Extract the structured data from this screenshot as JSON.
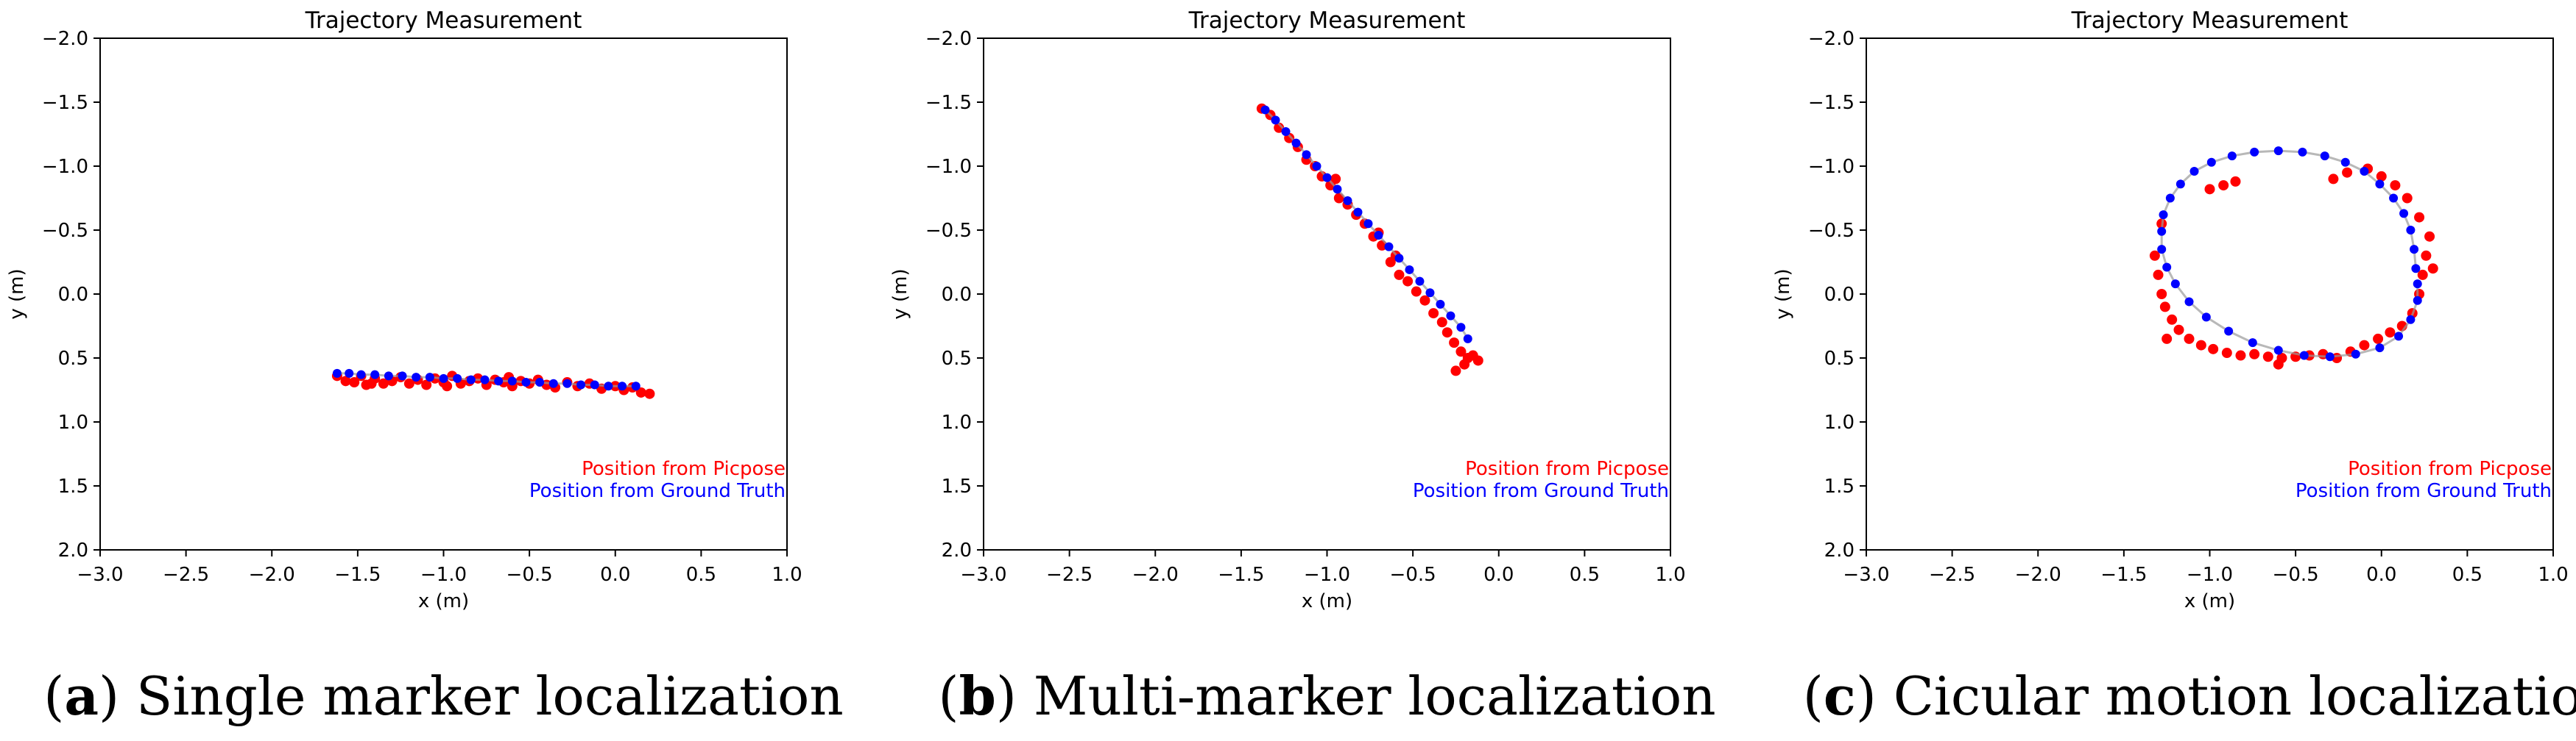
{
  "chart_data": [
    {
      "type": "scatter",
      "panel_label": "a",
      "caption": "Single marker localization",
      "title": "Trajectory Measurement",
      "xlabel": "x (m)",
      "ylabel": "y (m)",
      "xlim": [
        -3.0,
        1.0
      ],
      "ylim": [
        -2.0,
        2.0
      ],
      "y_inverted": true,
      "xticks": [
        "−3.0",
        "−2.5",
        "−2.0",
        "−1.5",
        "−1.0",
        "−0.5",
        "0.0",
        "0.5",
        "1.0"
      ],
      "yticks": [
        "−2.0",
        "−1.5",
        "−1.0",
        "−0.5",
        "0.0",
        "0.5",
        "1.0",
        "1.5",
        "2.0"
      ],
      "grid": false,
      "legend_position": "lower-right",
      "series": [
        {
          "name": "Position from Picpose",
          "color": "#ff0000",
          "points": [
            [
              -1.57,
              0.68
            ],
            [
              -1.52,
              0.69
            ],
            [
              -1.48,
              0.64
            ],
            [
              -1.45,
              0.71
            ],
            [
              -1.4,
              0.66
            ],
            [
              -1.35,
              0.7
            ],
            [
              -1.3,
              0.68
            ],
            [
              -1.25,
              0.65
            ],
            [
              -1.2,
              0.7
            ],
            [
              -1.15,
              0.67
            ],
            [
              -1.1,
              0.71
            ],
            [
              -1.05,
              0.66
            ],
            [
              -1.0,
              0.69
            ],
            [
              -0.95,
              0.64
            ],
            [
              -0.9,
              0.7
            ],
            [
              -0.85,
              0.68
            ],
            [
              -0.8,
              0.66
            ],
            [
              -0.75,
              0.71
            ],
            [
              -0.7,
              0.67
            ],
            [
              -0.65,
              0.69
            ],
            [
              -0.6,
              0.72
            ],
            [
              -0.55,
              0.68
            ],
            [
              -0.5,
              0.7
            ],
            [
              -0.45,
              0.67
            ],
            [
              -0.4,
              0.71
            ],
            [
              -0.35,
              0.73
            ],
            [
              -0.28,
              0.69
            ],
            [
              -0.22,
              0.72
            ],
            [
              -0.15,
              0.7
            ],
            [
              -0.08,
              0.74
            ],
            [
              0.0,
              0.72
            ],
            [
              0.05,
              0.75
            ],
            [
              0.1,
              0.73
            ],
            [
              0.15,
              0.77
            ],
            [
              0.2,
              0.78
            ],
            [
              -1.62,
              0.64
            ],
            [
              -1.42,
              0.7
            ],
            [
              -0.98,
              0.72
            ],
            [
              -0.62,
              0.65
            ]
          ]
        },
        {
          "name": "Position from Ground Truth",
          "color": "#0000ff",
          "points": [
            [
              -1.62,
              0.62
            ],
            [
              -1.55,
              0.62
            ],
            [
              -1.48,
              0.63
            ],
            [
              -1.4,
              0.63
            ],
            [
              -1.32,
              0.64
            ],
            [
              -1.24,
              0.64
            ],
            [
              -1.16,
              0.65
            ],
            [
              -1.08,
              0.65
            ],
            [
              -1.0,
              0.66
            ],
            [
              -0.92,
              0.66
            ],
            [
              -0.84,
              0.67
            ],
            [
              -0.76,
              0.67
            ],
            [
              -0.68,
              0.68
            ],
            [
              -0.6,
              0.68
            ],
            [
              -0.52,
              0.69
            ],
            [
              -0.44,
              0.69
            ],
            [
              -0.36,
              0.7
            ],
            [
              -0.28,
              0.7
            ],
            [
              -0.2,
              0.71
            ],
            [
              -0.12,
              0.71
            ],
            [
              -0.04,
              0.72
            ],
            [
              0.04,
              0.72
            ],
            [
              0.12,
              0.72
            ]
          ]
        }
      ]
    },
    {
      "type": "scatter",
      "panel_label": "b",
      "caption": "Multi-marker localization",
      "title": "Trajectory Measurement",
      "xlabel": "x (m)",
      "ylabel": "y (m)",
      "xlim": [
        -3.0,
        1.0
      ],
      "ylim": [
        -2.0,
        2.0
      ],
      "y_inverted": true,
      "xticks": [
        "−3.0",
        "−2.5",
        "−2.0",
        "−1.5",
        "−1.0",
        "−0.5",
        "0.0",
        "0.5",
        "1.0"
      ],
      "yticks": [
        "−2.0",
        "−1.5",
        "−1.0",
        "−0.5",
        "0.0",
        "0.5",
        "1.0",
        "1.5",
        "2.0"
      ],
      "grid": false,
      "legend_position": "lower-right",
      "series": [
        {
          "name": "Position from Picpose",
          "color": "#ff0000",
          "points": [
            [
              -1.38,
              -1.45
            ],
            [
              -1.33,
              -1.4
            ],
            [
              -1.28,
              -1.3
            ],
            [
              -1.22,
              -1.22
            ],
            [
              -1.17,
              -1.15
            ],
            [
              -1.12,
              -1.05
            ],
            [
              -1.07,
              -1.0
            ],
            [
              -1.03,
              -0.92
            ],
            [
              -0.98,
              -0.85
            ],
            [
              -0.93,
              -0.75
            ],
            [
              -0.88,
              -0.7
            ],
            [
              -0.83,
              -0.62
            ],
            [
              -0.78,
              -0.55
            ],
            [
              -0.73,
              -0.45
            ],
            [
              -0.68,
              -0.38
            ],
            [
              -0.63,
              -0.25
            ],
            [
              -0.58,
              -0.15
            ],
            [
              -0.53,
              -0.1
            ],
            [
              -0.48,
              -0.02
            ],
            [
              -0.43,
              0.05
            ],
            [
              -0.38,
              0.15
            ],
            [
              -0.33,
              0.22
            ],
            [
              -0.3,
              0.3
            ],
            [
              -0.26,
              0.38
            ],
            [
              -0.22,
              0.45
            ],
            [
              -0.18,
              0.5
            ],
            [
              -0.15,
              0.48
            ],
            [
              -0.12,
              0.52
            ],
            [
              -0.2,
              0.55
            ],
            [
              -0.25,
              0.6
            ],
            [
              -0.6,
              -0.3
            ],
            [
              -0.7,
              -0.48
            ],
            [
              -0.95,
              -0.9
            ]
          ]
        },
        {
          "name": "Position from Ground Truth",
          "color": "#0000ff",
          "points": [
            [
              -1.36,
              -1.44
            ],
            [
              -1.3,
              -1.36
            ],
            [
              -1.24,
              -1.27
            ],
            [
              -1.18,
              -1.18
            ],
            [
              -1.12,
              -1.09
            ],
            [
              -1.06,
              -1.0
            ],
            [
              -1.0,
              -0.91
            ],
            [
              -0.94,
              -0.82
            ],
            [
              -0.88,
              -0.73
            ],
            [
              -0.82,
              -0.64
            ],
            [
              -0.76,
              -0.55
            ],
            [
              -0.7,
              -0.46
            ],
            [
              -0.64,
              -0.37
            ],
            [
              -0.58,
              -0.28
            ],
            [
              -0.52,
              -0.19
            ],
            [
              -0.46,
              -0.1
            ],
            [
              -0.4,
              -0.01
            ],
            [
              -0.34,
              0.08
            ],
            [
              -0.28,
              0.17
            ],
            [
              -0.22,
              0.26
            ],
            [
              -0.18,
              0.35
            ]
          ]
        }
      ]
    },
    {
      "type": "scatter",
      "panel_label": "c",
      "caption": "Cicular motion localization",
      "title": "Trajectory Measurement",
      "xlabel": "x (m)",
      "ylabel": "y (m)",
      "xlim": [
        -3.0,
        1.0
      ],
      "ylim": [
        -2.0,
        2.0
      ],
      "y_inverted": true,
      "xticks": [
        "−3.0",
        "−2.5",
        "−2.0",
        "−1.5",
        "−1.0",
        "−0.5",
        "0.0",
        "0.5",
        "1.0"
      ],
      "yticks": [
        "−2.0",
        "−1.5",
        "−1.0",
        "−0.5",
        "0.0",
        "0.5",
        "1.0",
        "1.5",
        "2.0"
      ],
      "grid": false,
      "legend_position": "lower-right",
      "series": [
        {
          "name": "Position from Picpose",
          "color": "#ff0000",
          "points": [
            [
              -1.32,
              -0.3
            ],
            [
              -1.3,
              -0.15
            ],
            [
              -1.28,
              0.0
            ],
            [
              -1.26,
              0.1
            ],
            [
              -1.22,
              0.2
            ],
            [
              -1.18,
              0.28
            ],
            [
              -1.12,
              0.35
            ],
            [
              -1.05,
              0.4
            ],
            [
              -0.98,
              0.43
            ],
            [
              -0.9,
              0.46
            ],
            [
              -0.82,
              0.48
            ],
            [
              -0.74,
              0.47
            ],
            [
              -0.66,
              0.49
            ],
            [
              -0.58,
              0.5
            ],
            [
              -0.5,
              0.49
            ],
            [
              -0.42,
              0.48
            ],
            [
              -0.34,
              0.47
            ],
            [
              -0.26,
              0.5
            ],
            [
              -0.18,
              0.45
            ],
            [
              -0.1,
              0.4
            ],
            [
              -0.02,
              0.35
            ],
            [
              0.05,
              0.3
            ],
            [
              0.12,
              0.25
            ],
            [
              0.18,
              0.15
            ],
            [
              0.22,
              0.0
            ],
            [
              0.24,
              -0.15
            ],
            [
              0.26,
              -0.3
            ],
            [
              0.28,
              -0.45
            ],
            [
              0.22,
              -0.6
            ],
            [
              0.15,
              -0.75
            ],
            [
              0.08,
              -0.85
            ],
            [
              0.0,
              -0.92
            ],
            [
              -0.08,
              -0.98
            ],
            [
              -0.2,
              -0.95
            ],
            [
              -0.28,
              -0.9
            ],
            [
              -1.0,
              -0.82
            ],
            [
              -0.92,
              -0.85
            ],
            [
              -0.85,
              -0.88
            ],
            [
              -1.28,
              -0.55
            ],
            [
              -1.25,
              0.35
            ],
            [
              -0.6,
              0.55
            ],
            [
              0.3,
              -0.2
            ]
          ]
        },
        {
          "name": "Position from Ground Truth",
          "color": "#0000ff",
          "points": [
            [
              0.2,
              -0.2
            ],
            [
              0.19,
              -0.35
            ],
            [
              0.17,
              -0.5
            ],
            [
              0.13,
              -0.63
            ],
            [
              0.07,
              -0.75
            ],
            [
              -0.01,
              -0.86
            ],
            [
              -0.1,
              -0.96
            ],
            [
              -0.21,
              -1.03
            ],
            [
              -0.33,
              -1.08
            ],
            [
              -0.46,
              -1.11
            ],
            [
              -0.6,
              -1.12
            ],
            [
              -0.74,
              -1.11
            ],
            [
              -0.87,
              -1.08
            ],
            [
              -0.99,
              -1.03
            ],
            [
              -1.09,
              -0.96
            ],
            [
              -1.17,
              -0.86
            ],
            [
              -1.23,
              -0.75
            ],
            [
              -1.27,
              -0.62
            ],
            [
              -1.28,
              -0.49
            ],
            [
              -1.28,
              -0.35
            ],
            [
              -1.25,
              -0.21
            ],
            [
              -1.2,
              -0.08
            ],
            [
              -1.12,
              0.06
            ],
            [
              -1.02,
              0.18
            ],
            [
              -0.89,
              0.29
            ],
            [
              -0.75,
              0.38
            ],
            [
              -0.6,
              0.44
            ],
            [
              -0.45,
              0.48
            ],
            [
              -0.3,
              0.49
            ],
            [
              -0.15,
              0.47
            ],
            [
              -0.01,
              0.42
            ],
            [
              0.1,
              0.33
            ],
            [
              0.17,
              0.2
            ],
            [
              0.21,
              0.05
            ],
            [
              0.21,
              -0.08
            ]
          ]
        }
      ]
    }
  ]
}
